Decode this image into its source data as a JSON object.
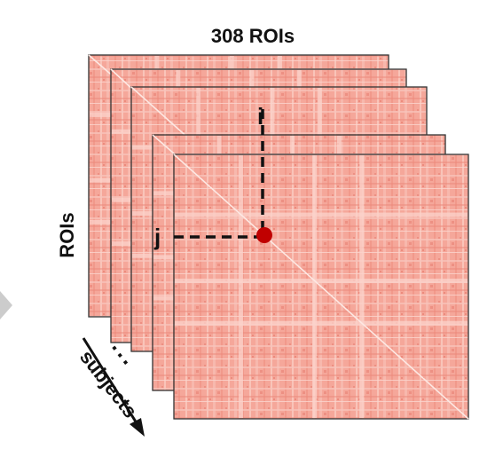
{
  "diagram": {
    "top_label": "308 ROIs",
    "side_label": "ROIs",
    "row_index_label": "i",
    "col_index_label": "j",
    "ellipsis": "...",
    "arrow_label": "subjects",
    "matrix_count": 5
  },
  "colors": {
    "matrix_base": "#f5a79a",
    "matrix_light": "#fbd3cb",
    "matrix_dark": "#e57a6b",
    "frame": "#333333",
    "marker": "#c00000",
    "side_arrow": "#cccccc"
  }
}
